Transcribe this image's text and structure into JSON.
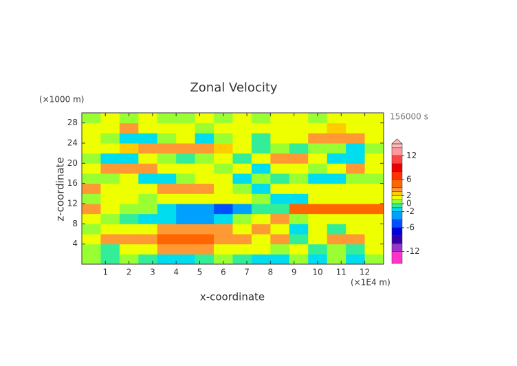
{
  "chart_data": {
    "type": "contour",
    "title": "Zonal Velocity",
    "y_unit": "(×1000 m)",
    "x_unit": "(×1E4 m)",
    "time_label": "156000 s",
    "xlabel": "x-coordinate",
    "ylabel": "z-coordinate",
    "xlim": [
      0,
      12.8
    ],
    "ylim": [
      0,
      30
    ],
    "xticks": [
      1,
      2,
      3,
      4,
      5,
      6,
      7,
      8,
      9,
      10,
      11,
      12
    ],
    "yticks": [
      4,
      8,
      12,
      16,
      20,
      24,
      28
    ],
    "x": [
      0.4,
      1.2,
      2.0,
      2.8,
      3.6,
      4.4,
      5.2,
      6.0,
      6.8,
      7.6,
      8.4,
      9.2,
      10.0,
      10.8,
      11.6,
      12.4
    ],
    "y": [
      1,
      3,
      5,
      7,
      9,
      11,
      13,
      15,
      17,
      19,
      21,
      23,
      25,
      27,
      29
    ],
    "z": [
      [
        0.5,
        -0.5,
        0.5,
        -0.5,
        -1.5,
        -1.5,
        -0.5,
        0.5,
        -0.5,
        -1.5,
        -1.5,
        0.5,
        -1.5,
        0.5,
        -1.5,
        0.5
      ],
      [
        0.5,
        -0.5,
        1.5,
        1.5,
        3.5,
        3.5,
        3.5,
        1.5,
        1.5,
        1.5,
        0.5,
        1.5,
        -0.5,
        0.5,
        -0.5,
        1.5
      ],
      [
        1.5,
        3.5,
        3.5,
        3.5,
        5,
        5,
        5,
        3.5,
        3.5,
        1.5,
        3.5,
        -0.5,
        1.5,
        3.5,
        3.5,
        1.5
      ],
      [
        0.5,
        1.5,
        1.5,
        1.5,
        3.5,
        3.5,
        3.5,
        3.5,
        1.5,
        3.5,
        1.5,
        -1.5,
        1.5,
        -0.5,
        1.5,
        1.5
      ],
      [
        1.5,
        0.5,
        -0.5,
        -1.5,
        -1.5,
        -3,
        -3,
        -1.5,
        0.5,
        1.5,
        3.5,
        0.5,
        1.5,
        1.5,
        1.5,
        1.5
      ],
      [
        3.5,
        1.5,
        0.5,
        0.5,
        -1.5,
        -3,
        -3,
        -5,
        -3,
        -0.5,
        -0.5,
        5,
        5,
        5,
        5,
        5
      ],
      [
        0.5,
        1.5,
        1.5,
        0.5,
        1.5,
        1.5,
        1.5,
        1.5,
        1.5,
        0.5,
        -1.5,
        -1.5,
        1.5,
        1.5,
        1.5,
        1.5
      ],
      [
        3.5,
        1.5,
        1.5,
        1.5,
        3.5,
        3.5,
        3.5,
        1.5,
        0.5,
        -1.5,
        1.5,
        1.5,
        1.5,
        1.5,
        1.5,
        1.5
      ],
      [
        0.5,
        0.5,
        1.5,
        -1.5,
        -1.5,
        0.5,
        1.5,
        1.5,
        -1.5,
        0.5,
        -0.5,
        0.5,
        -1.5,
        -1.5,
        0.5,
        0.5
      ],
      [
        1.5,
        3.5,
        3.5,
        3.5,
        1.5,
        1.5,
        1.5,
        0.5,
        1.5,
        -1.5,
        1.5,
        1.5,
        0.5,
        1.5,
        3.5,
        1.5
      ],
      [
        0.5,
        -1.5,
        -1.5,
        1.5,
        0.5,
        -0.5,
        0.5,
        1.5,
        -0.5,
        1.5,
        3.5,
        3.5,
        1.5,
        -1.5,
        -1.5,
        1.5
      ],
      [
        1.5,
        1.5,
        2.5,
        3.5,
        3.5,
        3.5,
        3.5,
        2.5,
        1.5,
        -0.5,
        0.5,
        -0.5,
        0.5,
        0.5,
        -1.5,
        0.5
      ],
      [
        1.5,
        0.5,
        -1.5,
        -1.5,
        0.5,
        1.5,
        -1.5,
        0.5,
        1.5,
        -0.5,
        1.5,
        1.5,
        3.5,
        3.5,
        3.5,
        1.5
      ],
      [
        1.5,
        1.5,
        3.5,
        1.5,
        1.5,
        1.5,
        0.5,
        1.5,
        1.5,
        1.5,
        1.5,
        1.5,
        1.5,
        2.5,
        1.5,
        1.5
      ],
      [
        0.5,
        1.5,
        0.5,
        1.5,
        0.5,
        0.5,
        1.5,
        0.5,
        1.5,
        0.5,
        1.5,
        1.5,
        0.5,
        1.5,
        1.5,
        1.5
      ]
    ],
    "levels": [
      -15,
      -12,
      -10,
      -8,
      -6,
      -4,
      -2,
      -1,
      0,
      1,
      2,
      3,
      4,
      6,
      8,
      10,
      12,
      14,
      15
    ],
    "colors": [
      "#ff33cc",
      "#9933cc",
      "#3300aa",
      "#0000dd",
      "#0050ff",
      "#00a0ff",
      "#00ddee",
      "#33ee99",
      "#99ff33",
      "#eeff00",
      "#ffcc00",
      "#ff9933",
      "#ff6600",
      "#ff3300",
      "#ee0000",
      "#ff4444",
      "#ff9999",
      "#ffbbbb"
    ],
    "colorbar_ticks": [
      12,
      6,
      2,
      0,
      -2,
      -6,
      -12
    ]
  }
}
